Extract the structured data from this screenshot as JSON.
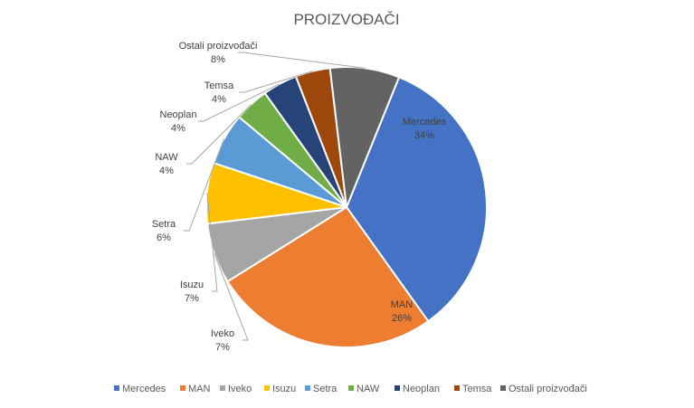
{
  "chart_data": {
    "type": "pie",
    "title": "PROIZVOĐAČI",
    "legend_position": "bottom",
    "slices": [
      {
        "name": "Mercedes",
        "value": 34,
        "label": "34%",
        "color": "#4472C4"
      },
      {
        "name": "MAN",
        "value": 26,
        "label": "26%",
        "color": "#ED7D31"
      },
      {
        "name": "Iveko",
        "value": 7,
        "label": "7%",
        "color": "#A5A5A5"
      },
      {
        "name": "Isuzu",
        "value": 7,
        "label": "7%",
        "color": "#FFC000"
      },
      {
        "name": "Setra",
        "value": 6,
        "label": "6%",
        "color": "#5B9BD5"
      },
      {
        "name": "NAW",
        "value": 4,
        "label": "4%",
        "color": "#70AD47"
      },
      {
        "name": "Neoplan",
        "value": 4,
        "label": "4%",
        "color": "#264478"
      },
      {
        "name": "Temsa",
        "value": 4,
        "label": "4%",
        "color": "#9E480E"
      },
      {
        "name": "Ostali proizvođači",
        "value": 8,
        "label": "8%",
        "color": "#636363"
      }
    ]
  }
}
